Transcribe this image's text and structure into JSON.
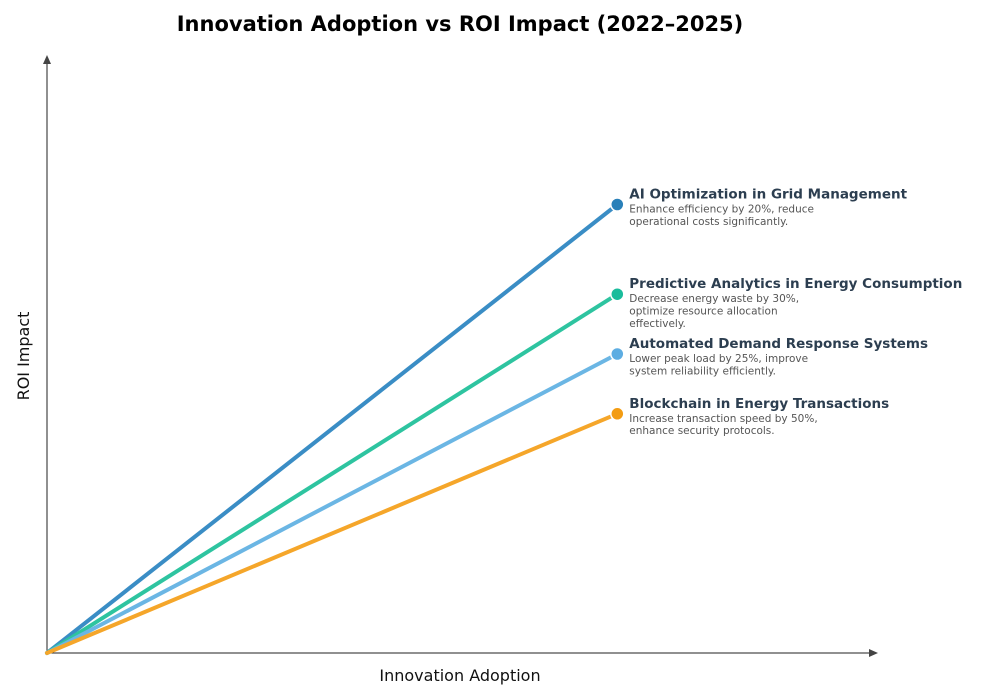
{
  "chart_data": {
    "type": "line",
    "title": "Innovation Adoption vs ROI Impact (2022–2025)",
    "xlabel": "Innovation Adoption",
    "ylabel": "ROI Impact",
    "xlim": [
      0,
      1.02
    ],
    "ylim": [
      0,
      1.0
    ],
    "grid": false,
    "ticks": false,
    "series": [
      {
        "name": "AI Optimization in Grid Management",
        "description": [
          "Enhance efficiency by 20%, reduce",
          "operational costs significantly."
        ],
        "x": [
          0,
          0.7
        ],
        "y": [
          0,
          0.75
        ],
        "color": "#3a8dc5",
        "marker_color": "#2980b9"
      },
      {
        "name": "Predictive Analytics in Energy Consumption",
        "description": [
          "Decrease energy waste by 30%,",
          "optimize resource allocation",
          "effectively."
        ],
        "x": [
          0,
          0.7
        ],
        "y": [
          0,
          0.6
        ],
        "color": "#2ec4a0",
        "marker_color": "#1abc9c"
      },
      {
        "name": "Automated Demand Response Systems",
        "description": [
          "Lower peak load by 25%, improve",
          "system reliability efficiently."
        ],
        "x": [
          0,
          0.7
        ],
        "y": [
          0,
          0.5
        ],
        "color": "#6bb6e4",
        "marker_color": "#5dade2"
      },
      {
        "name": "Blockchain in Energy Transactions",
        "description": [
          "Increase transaction speed by 50%,",
          "enhance security protocols."
        ],
        "x": [
          0,
          0.7
        ],
        "y": [
          0,
          0.4
        ],
        "color": "#f5a62a",
        "marker_color": "#f39c12"
      }
    ]
  }
}
